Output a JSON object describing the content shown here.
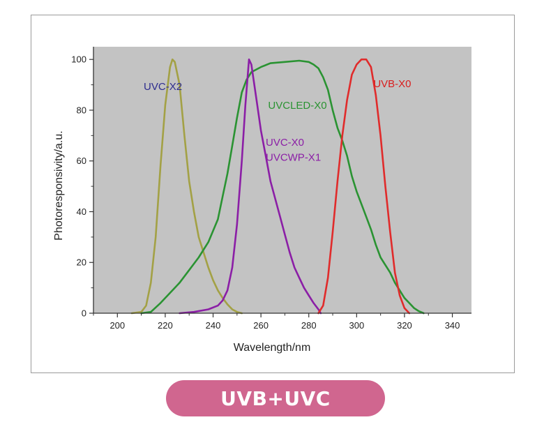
{
  "badge": {
    "label": "UVB+UVC"
  },
  "chart_data": {
    "type": "line",
    "title": "",
    "xlabel": "Wavelength/nm",
    "ylabel": "Photoresponsivity/a.u.",
    "xlim": [
      190,
      348
    ],
    "ylim": [
      0,
      105
    ],
    "xticks": [
      200,
      220,
      240,
      260,
      280,
      300,
      320,
      340
    ],
    "yticks": [
      0,
      20,
      40,
      60,
      80,
      100
    ],
    "background": "#c3c3c3",
    "grid": false,
    "legend": "none",
    "series": [
      {
        "name": "UVC-X2",
        "color": "#a3a145",
        "label_color": "#2e2d8e",
        "points": [
          [
            206,
            0
          ],
          [
            210,
            0.5
          ],
          [
            212,
            3
          ],
          [
            214,
            12
          ],
          [
            216,
            30
          ],
          [
            218,
            58
          ],
          [
            220,
            82
          ],
          [
            222,
            97
          ],
          [
            223,
            100
          ],
          [
            224,
            99
          ],
          [
            226,
            90
          ],
          [
            228,
            70
          ],
          [
            230,
            52
          ],
          [
            232,
            40
          ],
          [
            234,
            30
          ],
          [
            236,
            24
          ],
          [
            238,
            18
          ],
          [
            240,
            13
          ],
          [
            242,
            9
          ],
          [
            244,
            6
          ],
          [
            246,
            3.5
          ],
          [
            248,
            1.5
          ],
          [
            250,
            0.5
          ],
          [
            252,
            0
          ]
        ]
      },
      {
        "name": "UVCLED-X0",
        "color": "#2a9332",
        "label_color": "#2a9332",
        "points": [
          [
            210,
            0
          ],
          [
            214,
            0.5
          ],
          [
            218,
            4
          ],
          [
            222,
            8
          ],
          [
            226,
            12
          ],
          [
            230,
            17
          ],
          [
            234,
            22
          ],
          [
            238,
            28
          ],
          [
            242,
            37
          ],
          [
            244,
            46
          ],
          [
            246,
            55
          ],
          [
            248,
            66
          ],
          [
            250,
            77
          ],
          [
            252,
            87
          ],
          [
            254,
            92
          ],
          [
            256,
            95
          ],
          [
            260,
            97
          ],
          [
            264,
            98.5
          ],
          [
            270,
            99
          ],
          [
            276,
            99.5
          ],
          [
            280,
            99
          ],
          [
            282,
            98
          ],
          [
            284,
            96.5
          ],
          [
            286,
            93
          ],
          [
            288,
            88
          ],
          [
            290,
            80
          ],
          [
            292,
            73
          ],
          [
            294,
            68
          ],
          [
            296,
            62
          ],
          [
            298,
            54
          ],
          [
            300,
            48
          ],
          [
            302,
            43
          ],
          [
            304,
            38
          ],
          [
            306,
            33
          ],
          [
            308,
            27
          ],
          [
            310,
            22
          ],
          [
            312,
            19
          ],
          [
            314,
            16
          ],
          [
            316,
            12
          ],
          [
            318,
            9
          ],
          [
            320,
            6
          ],
          [
            322,
            4
          ],
          [
            324,
            2
          ],
          [
            326,
            0.8
          ],
          [
            328,
            0
          ]
        ]
      },
      {
        "name": "UVC-X0 UVCWP-X1",
        "color": "#8b1ea6",
        "label_color": "#8b1ea6",
        "points": [
          [
            226,
            0
          ],
          [
            232,
            0.5
          ],
          [
            238,
            1.5
          ],
          [
            242,
            3
          ],
          [
            244,
            5
          ],
          [
            246,
            9
          ],
          [
            248,
            18
          ],
          [
            250,
            35
          ],
          [
            252,
            60
          ],
          [
            253.5,
            82
          ],
          [
            255,
            100
          ],
          [
            256,
            98
          ],
          [
            258,
            85
          ],
          [
            260,
            72
          ],
          [
            262,
            62
          ],
          [
            264,
            52
          ],
          [
            266,
            45
          ],
          [
            268,
            38
          ],
          [
            270,
            31
          ],
          [
            272,
            24
          ],
          [
            274,
            18
          ],
          [
            276,
            14
          ],
          [
            278,
            10
          ],
          [
            280,
            7
          ],
          [
            282,
            4
          ],
          [
            284,
            1.5
          ],
          [
            285,
            0
          ]
        ]
      },
      {
        "name": "UVB-X0",
        "color": "#e02b2b",
        "label_color": "#d91e1e",
        "points": [
          [
            284,
            0
          ],
          [
            286,
            3
          ],
          [
            288,
            14
          ],
          [
            290,
            32
          ],
          [
            292,
            52
          ],
          [
            294,
            70
          ],
          [
            296,
            84
          ],
          [
            298,
            94
          ],
          [
            300,
            98
          ],
          [
            302,
            100
          ],
          [
            304,
            100
          ],
          [
            306,
            97
          ],
          [
            308,
            86
          ],
          [
            310,
            70
          ],
          [
            312,
            50
          ],
          [
            314,
            32
          ],
          [
            316,
            16
          ],
          [
            318,
            7
          ],
          [
            320,
            2
          ],
          [
            322,
            0
          ]
        ]
      }
    ],
    "annotations": [
      {
        "text": "UVC-X2",
        "x": 211,
        "y": 88
      },
      {
        "text": "UVCLED-X0",
        "x": 263,
        "y": 80.5
      },
      {
        "text": "UVC-X0",
        "x": 262,
        "y": 66
      },
      {
        "text": "UVCWP-X1",
        "x": 262,
        "y": 60
      },
      {
        "text": "UVB-X0",
        "x": 307,
        "y": 89
      }
    ]
  }
}
